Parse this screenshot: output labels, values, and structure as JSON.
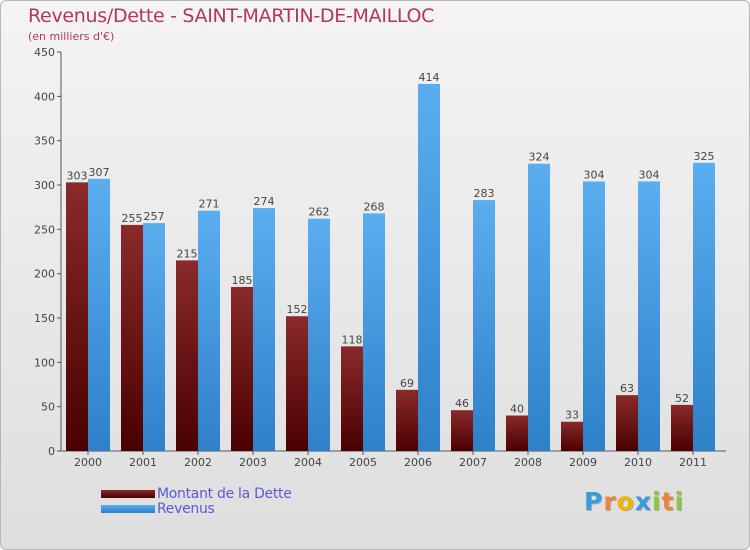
{
  "chart_data": {
    "type": "bar",
    "title": "Revenus/Dette - SAINT-MARTIN-DE-MAILLOC",
    "subtitle": "(en milliers d'€)",
    "xlabel": "",
    "ylabel": "",
    "ylim": [
      0,
      450
    ],
    "yticks": [
      0,
      50,
      100,
      150,
      200,
      250,
      300,
      350,
      400,
      450
    ],
    "grid": false,
    "categories": [
      "2000",
      "2001",
      "2002",
      "2003",
      "2004",
      "2005",
      "2006",
      "2007",
      "2008",
      "2009",
      "2010",
      "2011"
    ],
    "series": [
      {
        "name": "Montant de la Dette",
        "color_top": "#8a2a2a",
        "color_bottom": "#4a0000",
        "values": [
          303,
          255,
          215,
          185,
          152,
          118,
          69,
          46,
          40,
          33,
          63,
          52
        ]
      },
      {
        "name": "Revenus",
        "color_top": "#5aaef0",
        "color_bottom": "#2e80c8",
        "values": [
          307,
          257,
          271,
          274,
          262,
          268,
          414,
          283,
          324,
          304,
          304,
          325
        ]
      }
    ],
    "legend_position": "bottom-left"
  },
  "logo": {
    "letters": [
      "P",
      "r",
      "o",
      "x",
      "i",
      "t",
      "i"
    ],
    "colors": [
      "#3b9ad9",
      "#e8863a",
      "#f0b400",
      "#3b9ad9",
      "#8cc63f",
      "#e8863a",
      "#8cc63f"
    ]
  }
}
